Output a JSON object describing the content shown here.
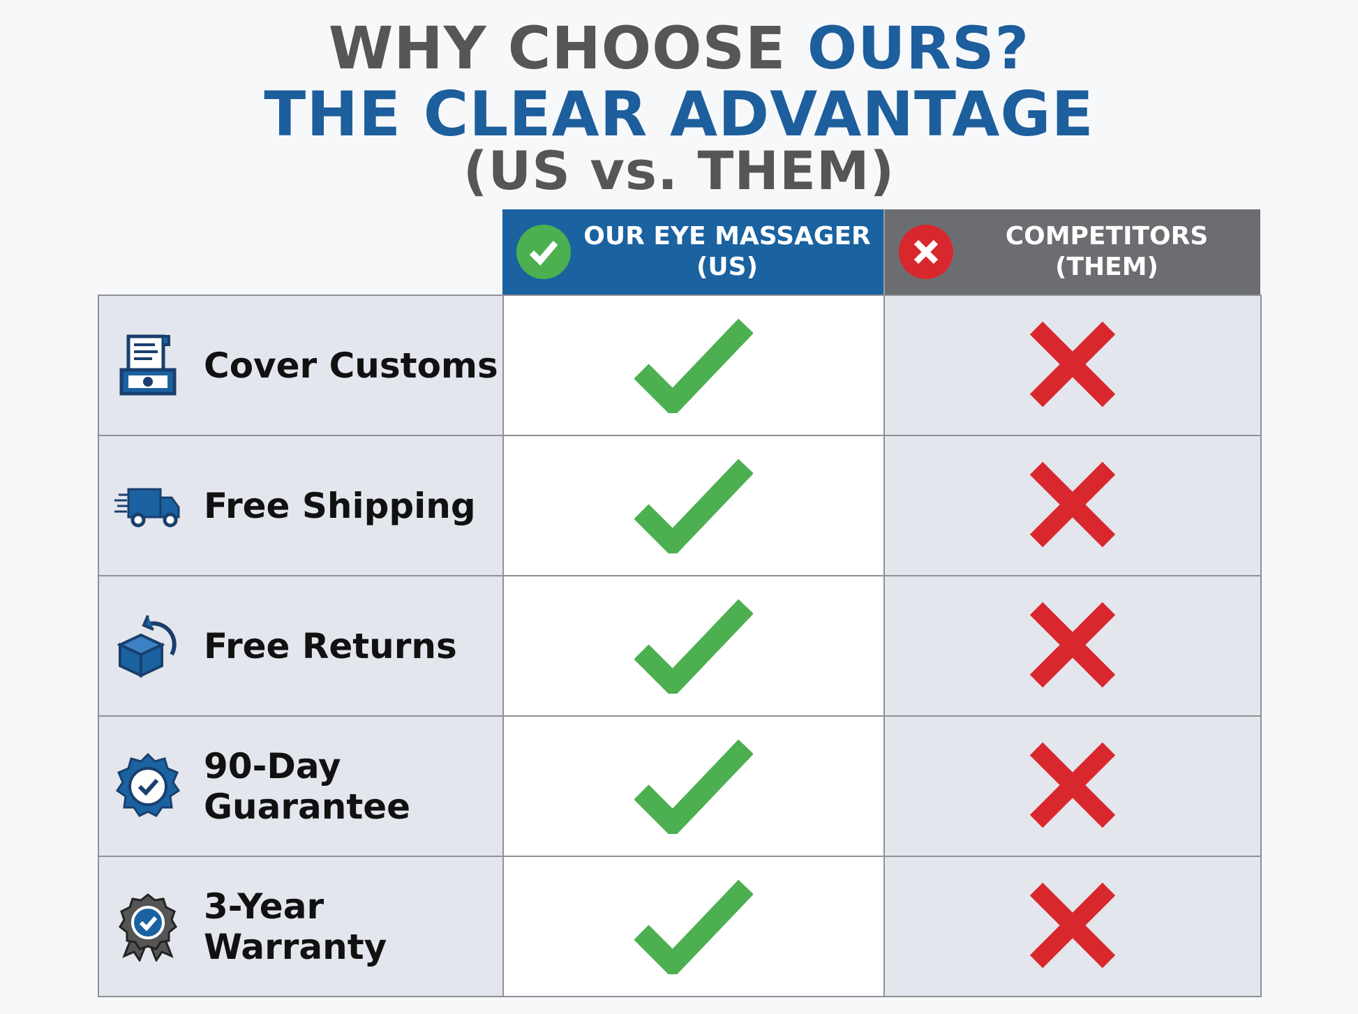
{
  "title": {
    "line1_a": "WHY CHOOSE ",
    "line1_b": "OURS?",
    "line2": "THE CLEAR ADVANTAGE",
    "line3": "(US vs. THEM)"
  },
  "columns": {
    "us": {
      "line1": "OUR EYE MASSAGER",
      "line2": "(US)",
      "icon": "check-circle-icon"
    },
    "them": {
      "line1": "COMPETITORS",
      "line2": "(THEM)",
      "icon": "x-circle-icon"
    }
  },
  "colors": {
    "blue": "#1a62a0",
    "gray": "#6c6d71",
    "green": "#4caf50",
    "red": "#d9272e",
    "row_bg": "#e3e6ec"
  },
  "rows": [
    {
      "label": "Cover Customs",
      "icon": "customs-receipt-icon",
      "us": true,
      "them": false
    },
    {
      "label": "Free Shipping",
      "icon": "delivery-truck-icon",
      "us": true,
      "them": false
    },
    {
      "label": "Free Returns",
      "icon": "return-box-icon",
      "us": true,
      "them": false
    },
    {
      "label": "90-Day Guarantee",
      "icon": "guarantee-badge-icon",
      "us": true,
      "them": false
    },
    {
      "label": "3-Year Warranty",
      "icon": "warranty-ribbon-icon",
      "us": true,
      "them": false
    }
  ]
}
